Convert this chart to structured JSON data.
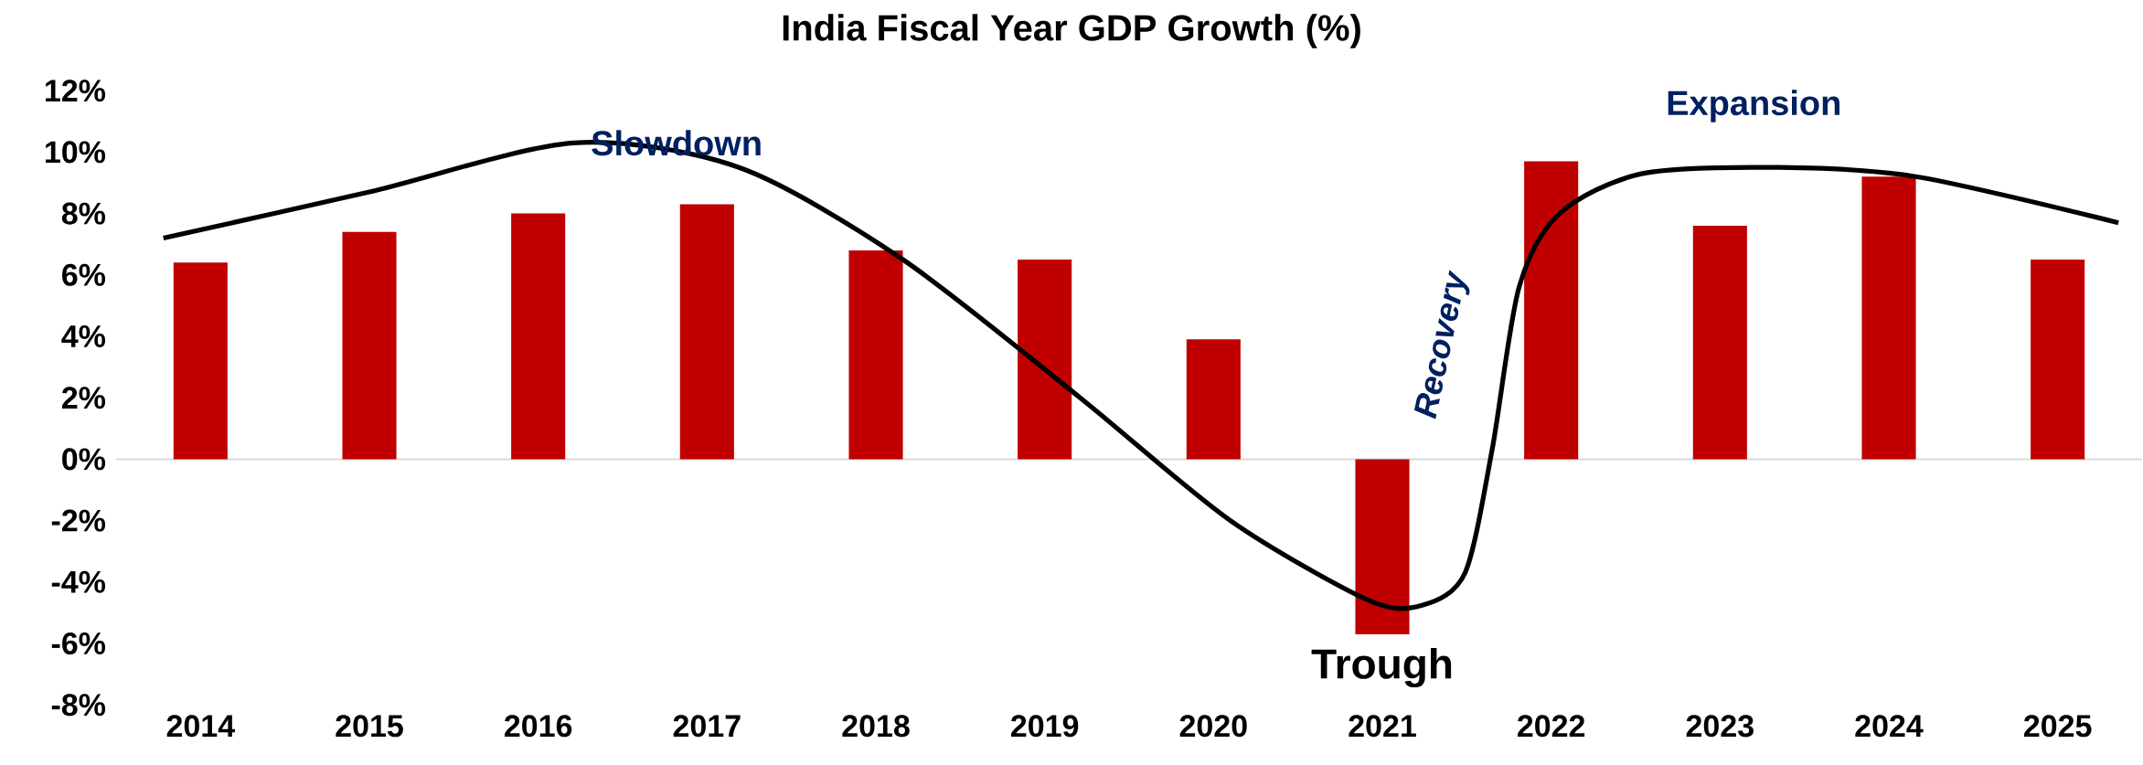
{
  "chart_data": {
    "type": "bar",
    "title": "India Fiscal Year GDP Growth (%)",
    "x": [
      2014,
      2015,
      2016,
      2017,
      2018,
      2019,
      2020,
      2021,
      2022,
      2023,
      2024,
      2025
    ],
    "series": [
      {
        "color": "#c00000",
        "values": [
          6.4,
          7.4,
          8.0,
          8.3,
          6.8,
          6.5,
          3.9,
          -5.7,
          9.7,
          7.6,
          9.2,
          6.5
        ]
      },
      {
        "type": "line",
        "color": "#000000",
        "x": [
          2013.78,
          2015.0,
          2016.21,
          2017.19,
          2018.16,
          2019.21,
          2020.1,
          2020.92,
          2021.24,
          2021.49,
          2021.65,
          2021.81,
          2022.05,
          2022.54,
          2023.35,
          2024.16,
          2025.36
        ],
        "values": [
          7.2,
          8.7,
          10.3,
          9.5,
          6.5,
          2.0,
          -2.0,
          -4.6,
          -4.75,
          -3.7,
          0.3,
          5.6,
          8.0,
          9.3,
          9.5,
          9.2,
          7.7
        ]
      }
    ],
    "xlim": [
      2013.5,
      2025.5
    ],
    "xticks": [
      2014,
      2015,
      2016,
      2017,
      2018,
      2019,
      2020,
      2021,
      2022,
      2023,
      2024,
      2025
    ],
    "ylim": [
      -8,
      12
    ],
    "yticks": [
      {
        "value": -8,
        "label": "-8%"
      },
      {
        "value": -6,
        "label": "-6%"
      },
      {
        "value": -4,
        "label": "-4%"
      },
      {
        "value": -2,
        "label": "-2%"
      },
      {
        "value": 0,
        "label": "0%"
      },
      {
        "value": 2,
        "label": "2%"
      },
      {
        "value": 4,
        "label": "4%"
      },
      {
        "value": 6,
        "label": "6%"
      },
      {
        "value": 8,
        "label": "8%"
      },
      {
        "value": 10,
        "label": "10%"
      },
      {
        "value": 12,
        "label": "12%"
      }
    ],
    "annotations": [
      "Slowdown",
      "Recovery",
      "Expansion",
      {
        "text": "Trough",
        "x": 2021,
        "y": -5.7
      }
    ]
  }
}
